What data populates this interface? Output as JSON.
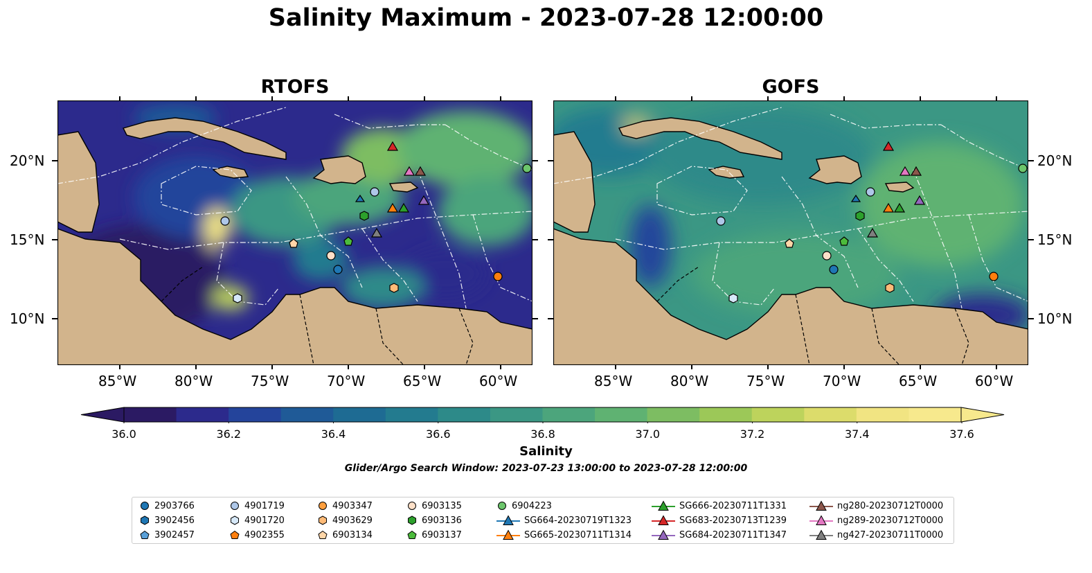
{
  "title": "Salinity Maximum - 2023-07-28 12:00:00",
  "panels": [
    {
      "title": "RTOFS"
    },
    {
      "title": "GOFS"
    }
  ],
  "axes": {
    "x_ticks": [
      "85°W",
      "80°W",
      "75°W",
      "70°W",
      "65°W",
      "60°W"
    ],
    "y_ticks": [
      "20°N",
      "15°N",
      "10°N"
    ]
  },
  "colorbar": {
    "label": "Salinity",
    "ticks": [
      "36.0",
      "36.2",
      "36.4",
      "36.6",
      "36.8",
      "37.0",
      "37.2",
      "37.4",
      "37.6"
    ],
    "range": [
      36.0,
      37.6
    ],
    "colors": [
      "#2b1a63",
      "#2c2a8c",
      "#24449b",
      "#1f5a97",
      "#1e6b93",
      "#237b8f",
      "#2d8a89",
      "#3b9784",
      "#4ca57c",
      "#5fb272",
      "#7dbd62",
      "#9cc858",
      "#bdd35c",
      "#dcdc6b",
      "#f1e482",
      "#f7e98d"
    ]
  },
  "search_window": "Glider/Argo Search Window: 2023-07-23 13:00:00 to 2023-07-28 12:00:00",
  "legend": [
    {
      "label": "2903766",
      "marker": "circle",
      "color": "#1f77b4"
    },
    {
      "label": "3902456",
      "marker": "hexagon",
      "color": "#1f77b4"
    },
    {
      "label": "3902457",
      "marker": "pentagon",
      "color": "#5aa0d8"
    },
    {
      "label": "4901719",
      "marker": "circle",
      "color": "#aec7e8"
    },
    {
      "label": "4901720",
      "marker": "hexagon",
      "color": "#d6e8f8"
    },
    {
      "label": "4902355",
      "marker": "pentagon",
      "color": "#ff7f0e"
    },
    {
      "label": "4903347",
      "marker": "circle",
      "color": "#ff9f3e"
    },
    {
      "label": "4903629",
      "marker": "hexagon",
      "color": "#ffbb78"
    },
    {
      "label": "6903134",
      "marker": "pentagon",
      "color": "#ffd6a8"
    },
    {
      "label": "6903135",
      "marker": "circle",
      "color": "#fde0c8"
    },
    {
      "label": "6903136",
      "marker": "hexagon",
      "color": "#2ca02c"
    },
    {
      "label": "6903137",
      "marker": "pentagon",
      "color": "#4cbb3c"
    },
    {
      "label": "6904223",
      "marker": "circle",
      "color": "#6cc66c"
    },
    {
      "label": "SG664-20230719T1323",
      "marker": "triangle",
      "color": "#1f77b4"
    },
    {
      "label": "SG665-20230711T1314",
      "marker": "triangle",
      "color": "#ff7f0e"
    },
    {
      "label": "SG666-20230711T1331",
      "marker": "triangle",
      "color": "#2ca02c"
    },
    {
      "label": "SG683-20230713T1239",
      "marker": "triangle",
      "color": "#d62728"
    },
    {
      "label": "SG684-20230711T1347",
      "marker": "triangle",
      "color": "#9467bd"
    },
    {
      "label": "ng280-20230712T0000",
      "marker": "triangle",
      "color": "#8c564b"
    },
    {
      "label": "ng289-20230712T0000",
      "marker": "triangle",
      "color": "#e377c2"
    },
    {
      "label": "ng427-20230711T0000",
      "marker": "triangle",
      "color": "#7f7f7f"
    }
  ]
}
